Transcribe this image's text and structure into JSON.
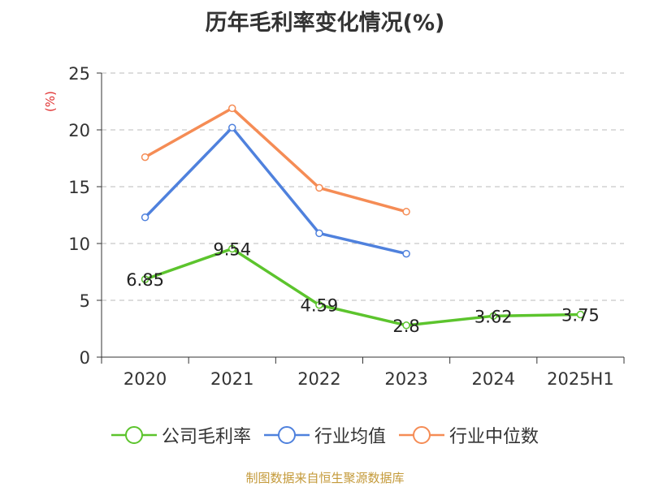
{
  "title": "历年毛利率变化情况(%)",
  "source": "制图数据来自恒生聚源数据库",
  "chart_data": {
    "type": "line",
    "categories": [
      "2020",
      "2021",
      "2022",
      "2023",
      "2024",
      "2025H1"
    ],
    "ylabel": "(%)",
    "ylim": [
      0,
      25
    ],
    "yticks": [
      0,
      5,
      10,
      15,
      20,
      25
    ],
    "grid": true,
    "legend_position": "bottom",
    "series": [
      {
        "name": "公司毛利率",
        "color": "#5cc42d",
        "show_labels": true,
        "values": [
          6.85,
          9.54,
          4.59,
          2.8,
          3.62,
          3.75
        ]
      },
      {
        "name": "行业均值",
        "color": "#4f81dd",
        "show_labels": false,
        "values": [
          12.3,
          20.2,
          10.9,
          9.1,
          null,
          null
        ]
      },
      {
        "name": "行业中位数",
        "color": "#f58c55",
        "show_labels": false,
        "values": [
          17.6,
          21.9,
          14.9,
          12.8,
          null,
          null
        ]
      }
    ]
  }
}
